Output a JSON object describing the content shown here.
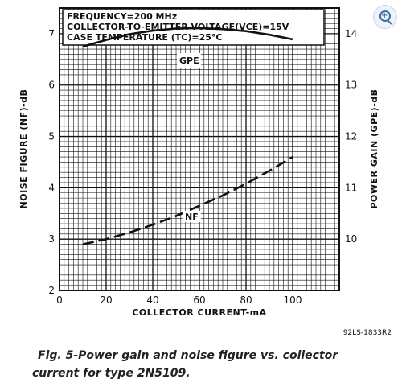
{
  "chart_data": {
    "type": "line",
    "title": "",
    "conditions": [
      "FREQUENCY=200 MHz",
      "COLLECTOR-TO-EMITTER VOLTAGE(VCE)=15V",
      "CASE TEMPERATURE (TC)=25°C"
    ],
    "xlabel": "COLLECTOR CURRENT-mA",
    "ylabel_left": "NOISE FIGURE (NF)-dB",
    "ylabel_right": "POWER GAIN (GPE)-dB",
    "xlim": [
      0,
      120
    ],
    "ylim_left": [
      2,
      7.5
    ],
    "ylim_right": [
      9,
      14.5
    ],
    "xticks": [
      "0",
      "20",
      "40",
      "60",
      "80",
      "100"
    ],
    "yticks_left": [
      "2",
      "3",
      "4",
      "5",
      "6",
      "7"
    ],
    "yticks_right": [
      "10",
      "11",
      "12",
      "13",
      "14"
    ],
    "grid": true,
    "series": [
      {
        "name": "GPE",
        "axis": "right",
        "style": "solid",
        "x": [
          10,
          20,
          30,
          40,
          50,
          60,
          70,
          80,
          90,
          100
        ],
        "y": [
          13.75,
          13.88,
          13.99,
          14.06,
          14.1,
          14.11,
          14.09,
          14.05,
          13.98,
          13.89
        ]
      },
      {
        "name": "NF",
        "axis": "left",
        "style": "dashed",
        "x": [
          10,
          20,
          30,
          40,
          50,
          60,
          70,
          80,
          90,
          100
        ],
        "y": [
          2.9,
          3.0,
          3.13,
          3.28,
          3.45,
          3.65,
          3.85,
          4.08,
          4.33,
          4.6
        ]
      }
    ]
  },
  "figure": {
    "code": "92LS-1833R2",
    "caption_line1": "Fig. 5-Power gain and noise figure vs. collector",
    "caption_line2": "current for type 2N5109."
  },
  "ui": {
    "zoom_icon": "magnifier-plus-icon",
    "zoom_plus": "+"
  }
}
